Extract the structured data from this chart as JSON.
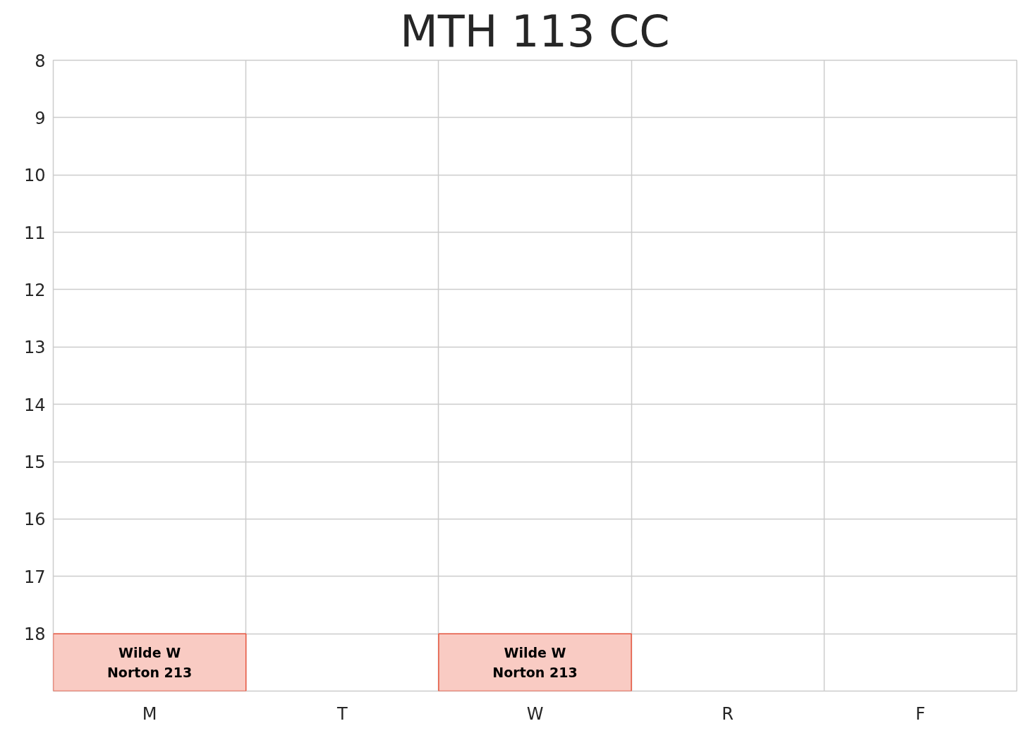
{
  "chart_data": {
    "type": "bar",
    "title": "MTH 113 CC",
    "categories": [
      "M",
      "T",
      "W",
      "R",
      "F"
    ],
    "values": [
      1,
      null,
      1,
      null,
      null
    ],
    "base": [
      18,
      null,
      18,
      null,
      null
    ],
    "colors": [
      "#f9cbc3",
      null,
      "#f9cbc3",
      null,
      null
    ],
    "value_labels": [
      "Wilde W\nNorton 213",
      null,
      "Wilde W\nNorton 213",
      null,
      null
    ],
    "ylim": [
      19,
      8
    ],
    "yticks": [
      8,
      9,
      10,
      11,
      12,
      13,
      14,
      15,
      16,
      17,
      18
    ],
    "grid": true
  }
}
